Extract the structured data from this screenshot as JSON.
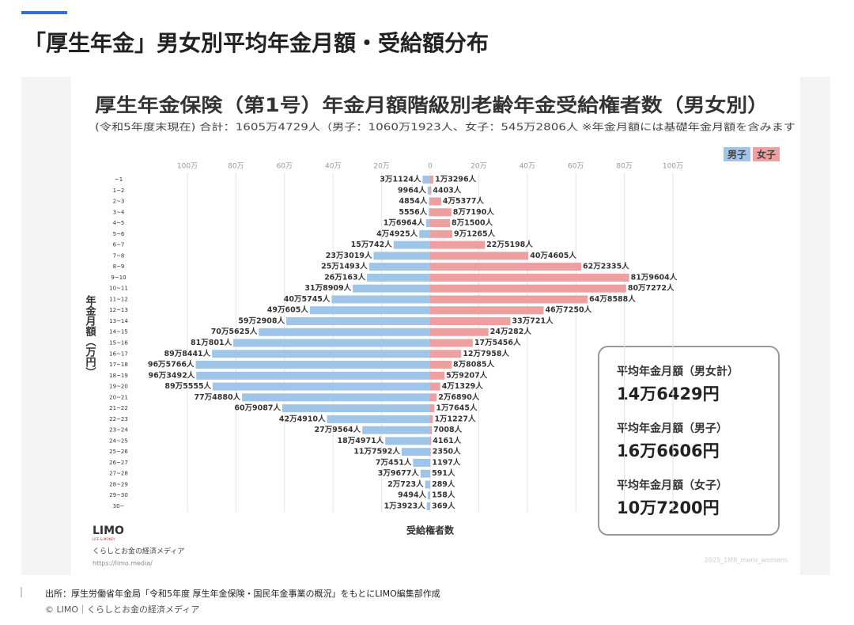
{
  "header": {
    "title": "「厚生年金」男女別平均年金月額・受給額分布"
  },
  "chart_data": {
    "type": "pyramid",
    "title": "厚生年金保険（第1号）年金月額階級別老齢年金受給権者数（男女別）",
    "subtitle": "(令和5年度末現在) 合計：1605万4729人（男子：1060万1923人、女子：545万2806人 ※年金月額には基礎年金月額を含みます",
    "y_label": "年金月額（万円）",
    "x_label": "受給権者数",
    "categories": [
      "~1",
      "1~2",
      "2~3",
      "3~4",
      "4~5",
      "5~6",
      "6~7",
      "7~8",
      "8~9",
      "9~10",
      "10~11",
      "11~12",
      "12~13",
      "13~14",
      "14~15",
      "15~16",
      "16~17",
      "17~18",
      "18~19",
      "19~20",
      "20~21",
      "21~22",
      "22~23",
      "23~24",
      "24~25",
      "25~26",
      "26~27",
      "27~28",
      "28~29",
      "29~30",
      "30~"
    ],
    "series": [
      {
        "name": "男子",
        "color": "#9fc5e8",
        "side": "left",
        "values": [
          31124,
          9964,
          4854,
          5556,
          16964,
          44925,
          150742,
          233019,
          251493,
          260163,
          318909,
          405745,
          495605,
          592908,
          705625,
          810801,
          898441,
          965766,
          963492,
          895555,
          774880,
          609087,
          424910,
          279564,
          184971,
          117592,
          70451,
          39677,
          20723,
          9494,
          13923
        ],
        "value_labels": [
          "3万1124人",
          "9964人",
          "4854人",
          "5556人",
          "1万6964人",
          "4万4925人",
          "15万742人",
          "23万3019人",
          "25万1493人",
          "26万163人",
          "31万8909人",
          "40万5745人",
          "49万605人",
          "59万2908人",
          "70万5625人",
          "81万801人",
          "89万8441人",
          "96万5766人",
          "96万3492人",
          "89万5555人",
          "77万4880人",
          "60万9087人",
          "42万4910人",
          "27万9564人",
          "18万4971人",
          "11万7592人",
          "7万451人",
          "3万9677人",
          "2万723人",
          "9494人",
          "1万3923人"
        ]
      },
      {
        "name": "女子",
        "color": "#ee9f9f",
        "side": "right",
        "values": [
          13296,
          4403,
          45377,
          87190,
          81500,
          91265,
          225198,
          404605,
          622335,
          819604,
          807272,
          648588,
          467250,
          330721,
          240282,
          175456,
          127958,
          88085,
          59207,
          41329,
          26890,
          17645,
          11227,
          7008,
          4161,
          2350,
          1197,
          591,
          289,
          158,
          369
        ],
        "value_labels": [
          "1万3296人",
          "4403人",
          "4万5377人",
          "8万7190人",
          "8万1500人",
          "9万1265人",
          "22万5198人",
          "40万4605人",
          "62万2335人",
          "81万9604人",
          "80万7272人",
          "64万8588人",
          "46万7250人",
          "33万721人",
          "24万282人",
          "17万5456人",
          "12万7958人",
          "8万8085人",
          "5万9207人",
          "4万1329人",
          "2万6890人",
          "1万7645人",
          "1万1227人",
          "7008人",
          "4161人",
          "2350人",
          "1197人",
          "591人",
          "289人",
          "158人",
          "369人"
        ]
      }
    ],
    "xlim": [
      -1000000,
      1000000
    ],
    "xticks": [
      {
        "value": -1000000,
        "label": "100万"
      },
      {
        "value": -800000,
        "label": "80万"
      },
      {
        "value": -600000,
        "label": "60万"
      },
      {
        "value": -400000,
        "label": "40万"
      },
      {
        "value": -200000,
        "label": "20万"
      },
      0,
      {
        "value": 200000,
        "label": "20万"
      },
      {
        "value": 400000,
        "label": "40万"
      },
      {
        "value": 600000,
        "label": "60万"
      },
      {
        "value": 800000,
        "label": "80万"
      },
      {
        "value": 1000000,
        "label": "100万"
      }
    ],
    "grid": true,
    "legend": "top-right"
  },
  "summary": [
    {
      "label": "平均年金月額（男女計）",
      "value": "14万6429円"
    },
    {
      "label": "平均年金月額（男子）",
      "value": "16万6606円"
    },
    {
      "label": "平均年金月額（女子）",
      "value": "10万7200円"
    }
  ],
  "brand": {
    "logo": "LIMO",
    "logo_sub": "LIFE & MONEY",
    "tagline": "くらしとお金の経済メディア",
    "url": "https://limo.media/",
    "watermark": "2025_1MR_mens_womens"
  },
  "caption": {
    "source": "出所：厚生労働省年金局「令和5年度 厚生年金保険・国民年金事業の概況」をもとにLIMO編集部作成",
    "credit": "© LIMO｜くらしとお金の経済メディア"
  }
}
